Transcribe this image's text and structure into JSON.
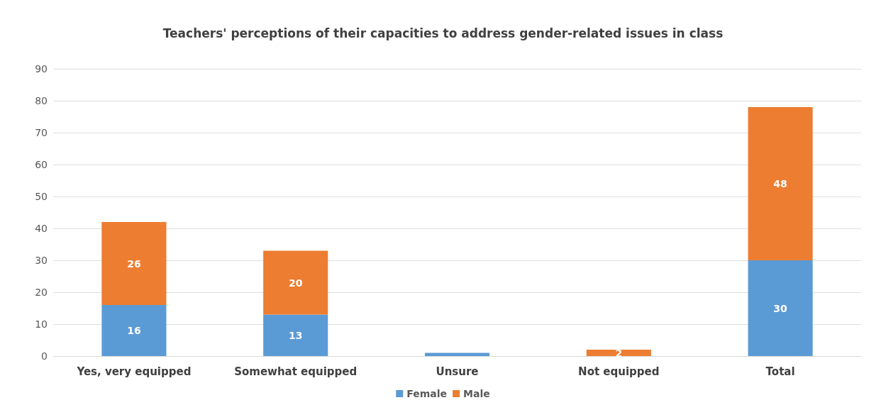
{
  "chart_data": {
    "type": "bar",
    "title": "Teachers' perceptions of their capacities to address gender-related issues in class",
    "categories": [
      "Yes, very equipped",
      "Somewhat equipped",
      "Unsure",
      "Not equipped",
      "Total"
    ],
    "stacked": true,
    "series": [
      {
        "name": "Female",
        "color": "#5b9bd5",
        "values": [
          16,
          13,
          1,
          0,
          30
        ],
        "value_labels": [
          "16",
          "13",
          null,
          null,
          "30"
        ]
      },
      {
        "name": "Male",
        "color": "#ed7d31",
        "values": [
          26,
          20,
          0,
          2,
          48
        ],
        "value_labels": [
          "26",
          "20",
          null,
          "2",
          "48"
        ]
      }
    ],
    "ylim": [
      0,
      90
    ],
    "yticks": [
      0,
      10,
      20,
      30,
      40,
      50,
      60,
      70,
      80,
      90
    ],
    "grid": "y",
    "legend": "bottom"
  }
}
